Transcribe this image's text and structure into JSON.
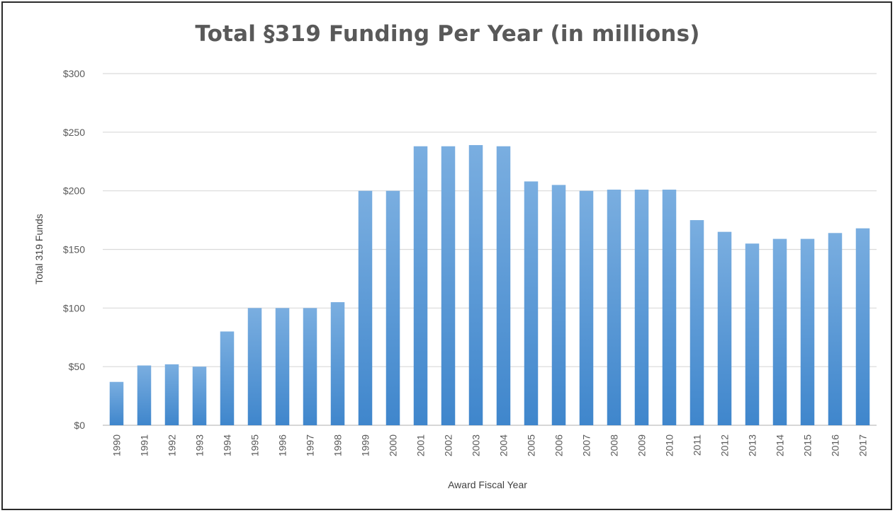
{
  "chart_data": {
    "type": "bar",
    "title": "Total §319 Funding Per Year (in millions)",
    "xlabel": "Award Fiscal Year",
    "ylabel": "Total 319 Funds",
    "ylim": [
      0,
      300
    ],
    "y_ticks": [
      "$0",
      "$50",
      "$100",
      "$150",
      "$200",
      "$250",
      "$300"
    ],
    "grid": true,
    "legend": "none",
    "bar_color": "#5b9bd5",
    "categories": [
      "1990",
      "1991",
      "1992",
      "1993",
      "1994",
      "1995",
      "1996",
      "1997",
      "1998",
      "1999",
      "2000",
      "2001",
      "2002",
      "2003",
      "2004",
      "2005",
      "2006",
      "2007",
      "2008",
      "2009",
      "2010",
      "2011",
      "2012",
      "2013",
      "2014",
      "2015",
      "2016",
      "2017"
    ],
    "values": [
      37,
      51,
      52,
      50,
      80,
      100,
      100,
      100,
      105,
      200,
      200,
      238,
      238,
      239,
      238,
      208,
      205,
      200,
      201,
      201,
      201,
      175,
      165,
      155,
      159,
      159,
      164,
      168
    ]
  }
}
